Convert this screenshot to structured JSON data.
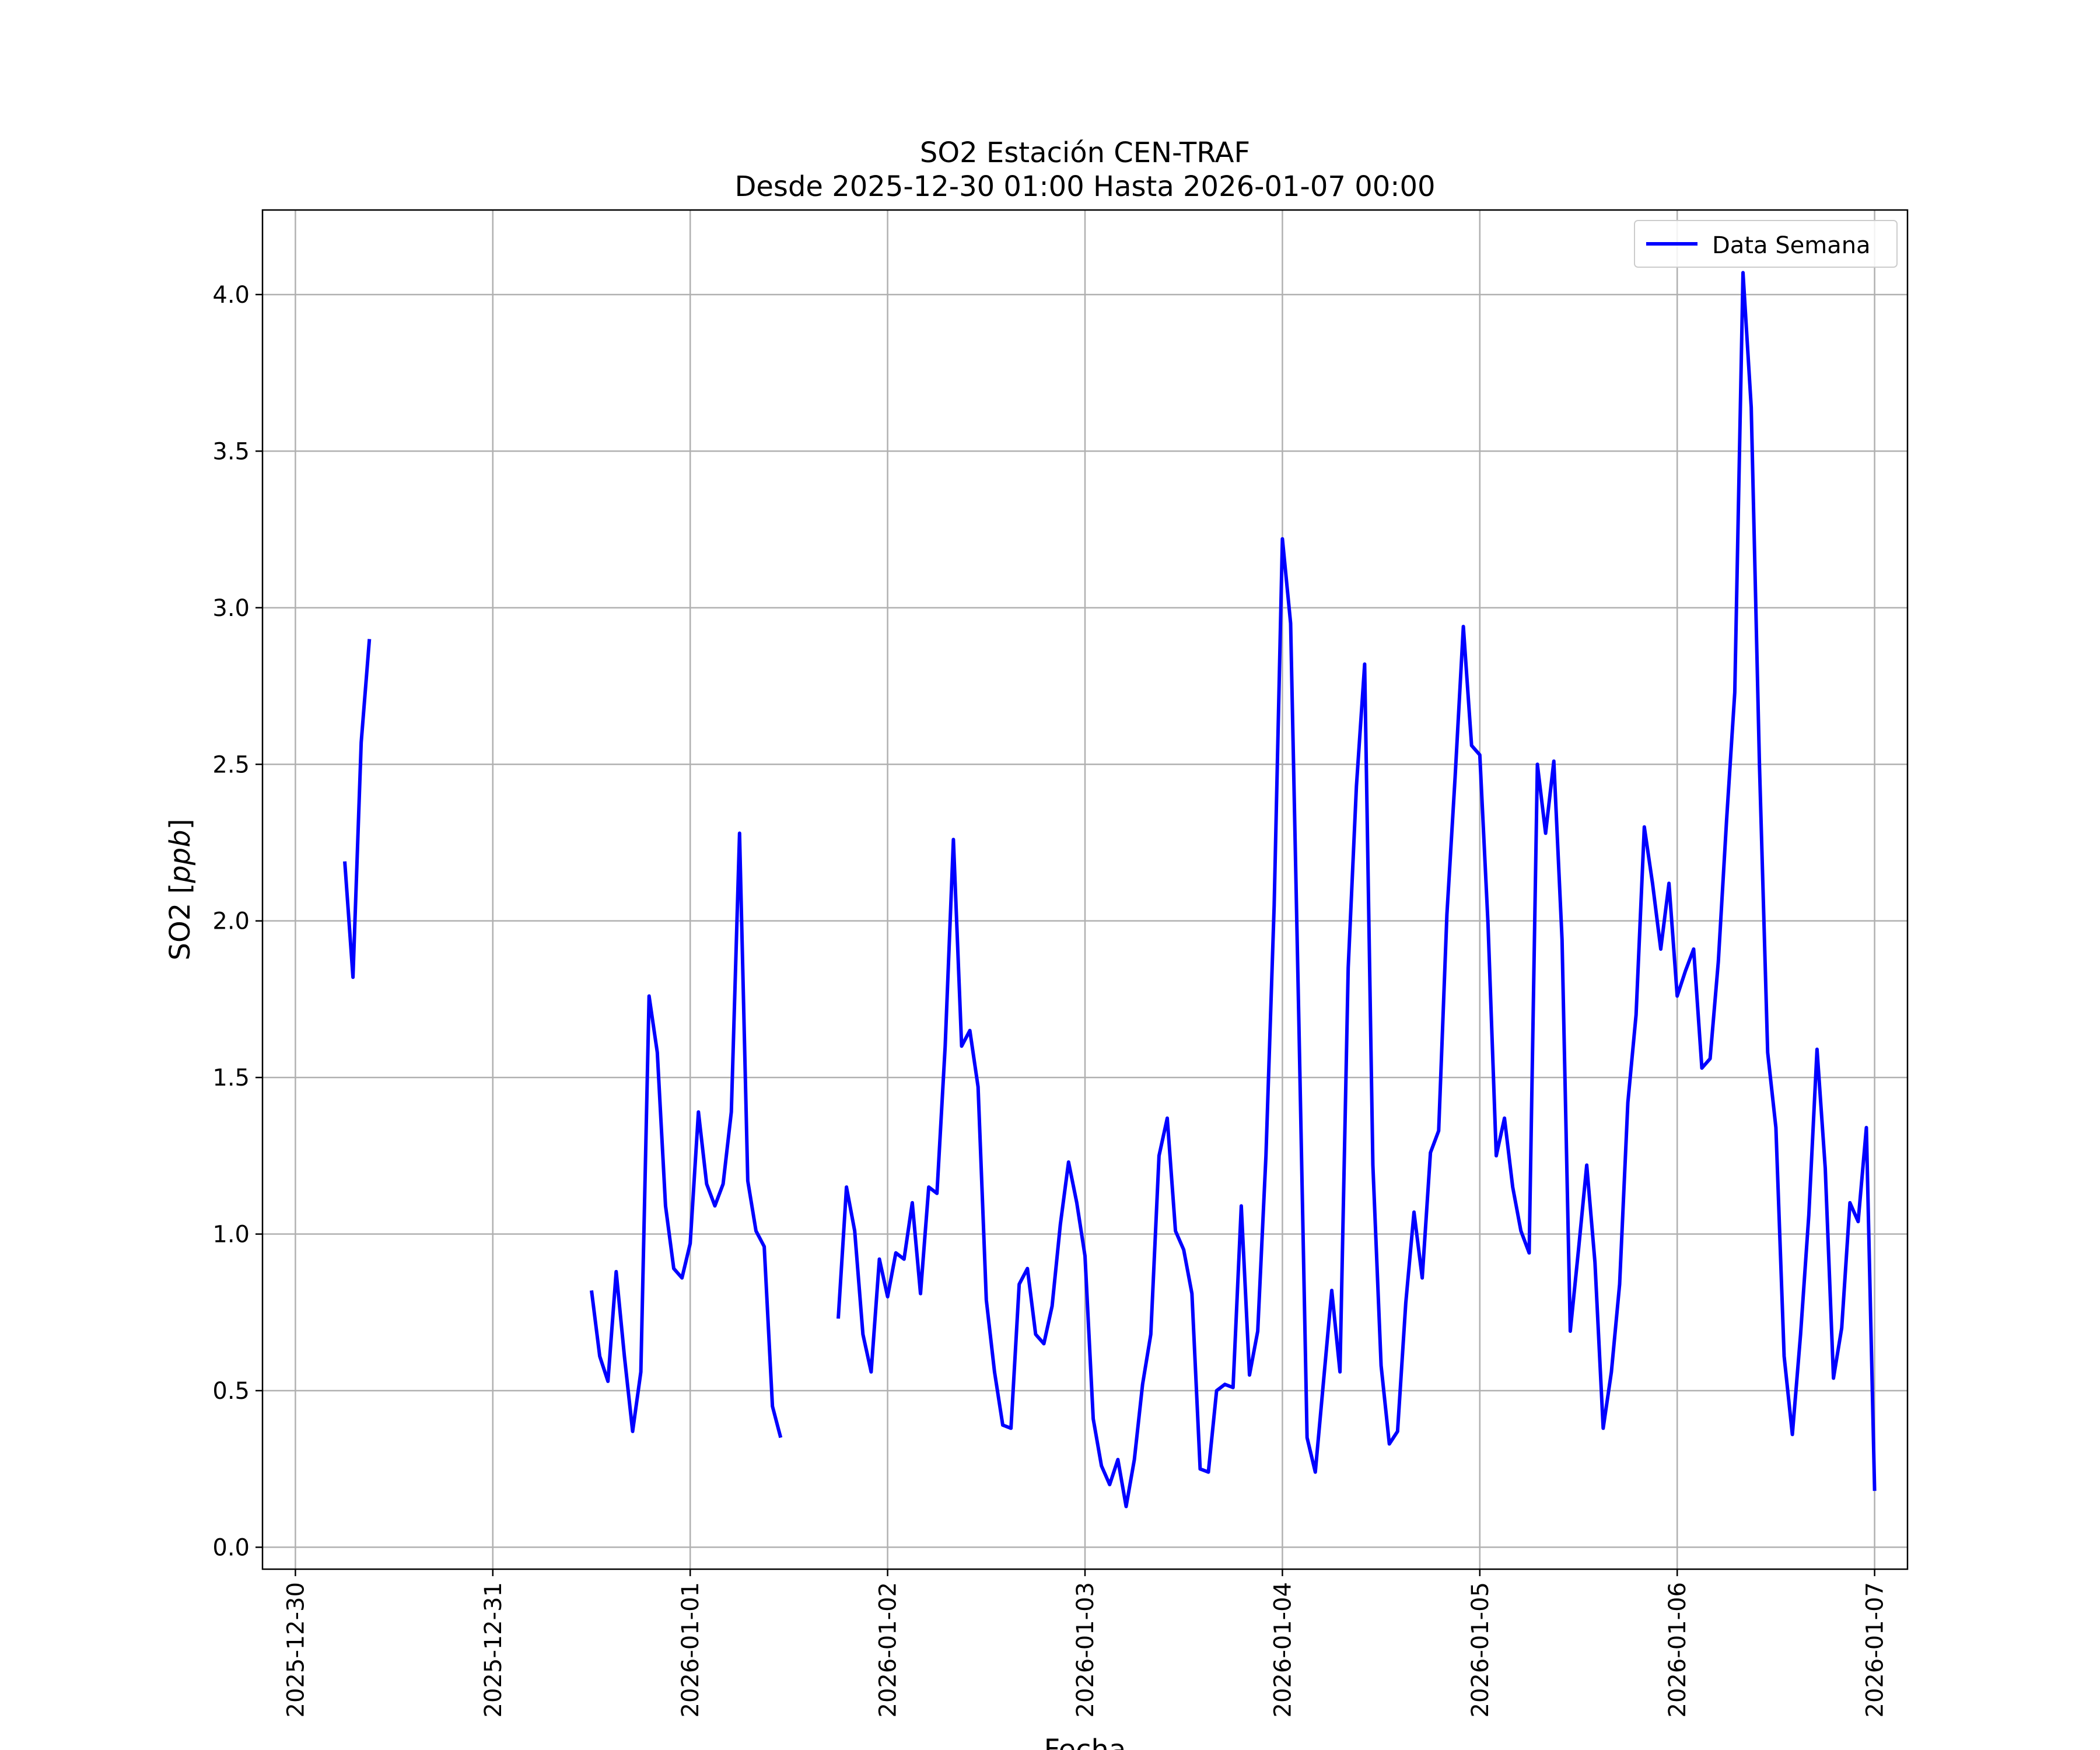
{
  "chart_data": {
    "type": "line",
    "title": "SO2 Estación CEN-TRAF",
    "subtitle": "Desde 2025-12-30 01:00 Hasta 2026-01-07 00:00",
    "xlabel": "Fecha",
    "ylabel": "SO2 [",
    "ylabel_italic": "ppb",
    "ylabel_suffix": "]",
    "xlim": [
      "2025-12-29 20:00",
      "2026-01-07 04:00"
    ],
    "ylim": [
      -0.07,
      4.27
    ],
    "grid": true,
    "legend": "top-right",
    "x_ticks": [
      "2025-12-30",
      "2025-12-31",
      "2026-01-01",
      "2026-01-02",
      "2026-01-03",
      "2026-01-04",
      "2026-01-05",
      "2026-01-06",
      "2026-01-07"
    ],
    "y_ticks": [
      "0.0",
      "0.5",
      "1.0",
      "1.5",
      "2.0",
      "2.5",
      "3.0",
      "3.5",
      "4.0"
    ],
    "color": "#0000ff",
    "series": [
      {
        "name": "Data Semana",
        "segments": [
          [
            [
              "2025-12-30 06:00",
              2.19
            ],
            [
              "2025-12-30 07:00",
              1.82
            ],
            [
              "2025-12-30 08:00",
              2.57
            ],
            [
              "2025-12-30 09:00",
              2.9
            ]
          ],
          [
            [
              "2025-12-31 12:00",
              0.82
            ],
            [
              "2025-12-31 13:00",
              0.61
            ],
            [
              "2025-12-31 14:00",
              0.53
            ],
            [
              "2025-12-31 15:00",
              0.88
            ],
            [
              "2025-12-31 16:00",
              0.61
            ],
            [
              "2025-12-31 17:00",
              0.37
            ],
            [
              "2025-12-31 18:00",
              0.56
            ],
            [
              "2025-12-31 19:00",
              1.76
            ],
            [
              "2025-12-31 20:00",
              1.58
            ],
            [
              "2025-12-31 21:00",
              1.09
            ],
            [
              "2025-12-31 22:00",
              0.89
            ],
            [
              "2025-12-31 23:00",
              0.86
            ],
            [
              "2026-01-01 00:00",
              0.97
            ],
            [
              "2026-01-01 01:00",
              1.39
            ],
            [
              "2026-01-01 02:00",
              1.16
            ],
            [
              "2026-01-01 03:00",
              1.09
            ],
            [
              "2026-01-01 04:00",
              1.16
            ],
            [
              "2026-01-01 05:00",
              1.39
            ],
            [
              "2026-01-01 06:00",
              2.28
            ],
            [
              "2026-01-01 07:00",
              1.17
            ],
            [
              "2026-01-01 08:00",
              1.01
            ],
            [
              "2026-01-01 09:00",
              0.96
            ],
            [
              "2026-01-01 10:00",
              0.45
            ],
            [
              "2026-01-01 11:00",
              0.35
            ]
          ],
          [
            [
              "2026-01-01 18:00",
              0.73
            ],
            [
              "2026-01-01 19:00",
              1.15
            ],
            [
              "2026-01-01 20:00",
              1.01
            ],
            [
              "2026-01-01 21:00",
              0.68
            ],
            [
              "2026-01-01 22:00",
              0.56
            ],
            [
              "2026-01-01 23:00",
              0.92
            ],
            [
              "2026-01-02 00:00",
              0.8
            ],
            [
              "2026-01-02 01:00",
              0.94
            ],
            [
              "2026-01-02 02:00",
              0.92
            ],
            [
              "2026-01-02 03:00",
              1.1
            ],
            [
              "2026-01-02 04:00",
              0.81
            ],
            [
              "2026-01-02 05:00",
              1.15
            ],
            [
              "2026-01-02 06:00",
              1.13
            ],
            [
              "2026-01-02 07:00",
              1.6
            ],
            [
              "2026-01-02 08:00",
              2.26
            ],
            [
              "2026-01-02 09:00",
              1.6
            ],
            [
              "2026-01-02 10:00",
              1.65
            ],
            [
              "2026-01-02 11:00",
              1.47
            ],
            [
              "2026-01-02 12:00",
              0.79
            ],
            [
              "2026-01-02 13:00",
              0.56
            ],
            [
              "2026-01-02 14:00",
              0.39
            ],
            [
              "2026-01-02 15:00",
              0.38
            ],
            [
              "2026-01-02 16:00",
              0.84
            ],
            [
              "2026-01-02 17:00",
              0.89
            ],
            [
              "2026-01-02 18:00",
              0.68
            ],
            [
              "2026-01-02 19:00",
              0.65
            ],
            [
              "2026-01-02 20:00",
              0.77
            ],
            [
              "2026-01-02 21:00",
              1.03
            ],
            [
              "2026-01-02 22:00",
              1.23
            ],
            [
              "2026-01-02 23:00",
              1.1
            ],
            [
              "2026-01-03 00:00",
              0.93
            ],
            [
              "2026-01-03 01:00",
              0.41
            ],
            [
              "2026-01-03 02:00",
              0.26
            ],
            [
              "2026-01-03 03:00",
              0.2
            ],
            [
              "2026-01-03 04:00",
              0.28
            ],
            [
              "2026-01-03 05:00",
              0.13
            ],
            [
              "2026-01-03 06:00",
              0.28
            ],
            [
              "2026-01-03 07:00",
              0.52
            ],
            [
              "2026-01-03 08:00",
              0.68
            ],
            [
              "2026-01-03 09:00",
              1.25
            ],
            [
              "2026-01-03 10:00",
              1.37
            ],
            [
              "2026-01-03 11:00",
              1.01
            ],
            [
              "2026-01-03 12:00",
              0.95
            ],
            [
              "2026-01-03 13:00",
              0.81
            ],
            [
              "2026-01-03 14:00",
              0.25
            ],
            [
              "2026-01-03 15:00",
              0.24
            ],
            [
              "2026-01-03 16:00",
              0.5
            ],
            [
              "2026-01-03 17:00",
              0.52
            ],
            [
              "2026-01-03 18:00",
              0.51
            ],
            [
              "2026-01-03 19:00",
              1.09
            ],
            [
              "2026-01-03 20:00",
              0.55
            ],
            [
              "2026-01-03 21:00",
              0.69
            ],
            [
              "2026-01-03 22:00",
              1.25
            ],
            [
              "2026-01-03 23:00",
              2.05
            ],
            [
              "2026-01-04 00:00",
              3.22
            ],
            [
              "2026-01-04 01:00",
              2.95
            ],
            [
              "2026-01-04 02:00",
              1.68
            ],
            [
              "2026-01-04 03:00",
              0.35
            ],
            [
              "2026-01-04 04:00",
              0.24
            ],
            [
              "2026-01-04 05:00",
              0.53
            ],
            [
              "2026-01-04 06:00",
              0.82
            ],
            [
              "2026-01-04 07:00",
              0.56
            ],
            [
              "2026-01-04 08:00",
              1.85
            ],
            [
              "2026-01-04 09:00",
              2.43
            ],
            [
              "2026-01-04 10:00",
              2.82
            ],
            [
              "2026-01-04 11:00",
              1.22
            ],
            [
              "2026-01-04 12:00",
              0.58
            ],
            [
              "2026-01-04 13:00",
              0.33
            ],
            [
              "2026-01-04 14:00",
              0.37
            ],
            [
              "2026-01-04 15:00",
              0.78
            ],
            [
              "2026-01-04 16:00",
              1.07
            ],
            [
              "2026-01-04 17:00",
              0.86
            ],
            [
              "2026-01-04 18:00",
              1.26
            ],
            [
              "2026-01-04 19:00",
              1.33
            ],
            [
              "2026-01-04 20:00",
              2.02
            ],
            [
              "2026-01-04 21:00",
              2.46
            ],
            [
              "2026-01-04 22:00",
              2.94
            ],
            [
              "2026-01-04 23:00",
              2.56
            ],
            [
              "2026-01-05 00:00",
              2.53
            ],
            [
              "2026-01-05 01:00",
              1.99
            ],
            [
              "2026-01-05 02:00",
              1.25
            ],
            [
              "2026-01-05 03:00",
              1.37
            ],
            [
              "2026-01-05 04:00",
              1.15
            ],
            [
              "2026-01-05 05:00",
              1.01
            ],
            [
              "2026-01-05 06:00",
              0.94
            ],
            [
              "2026-01-05 07:00",
              2.5
            ],
            [
              "2026-01-05 08:00",
              2.28
            ],
            [
              "2026-01-05 09:00",
              2.51
            ],
            [
              "2026-01-05 10:00",
              1.94
            ],
            [
              "2026-01-05 11:00",
              0.69
            ],
            [
              "2026-01-05 12:00",
              0.95
            ],
            [
              "2026-01-05 13:00",
              1.22
            ],
            [
              "2026-01-05 14:00",
              0.91
            ],
            [
              "2026-01-05 15:00",
              0.38
            ],
            [
              "2026-01-05 16:00",
              0.56
            ],
            [
              "2026-01-05 17:00",
              0.84
            ],
            [
              "2026-01-05 18:00",
              1.42
            ],
            [
              "2026-01-05 19:00",
              1.7
            ],
            [
              "2026-01-05 20:00",
              2.3
            ],
            [
              "2026-01-05 21:00",
              2.12
            ],
            [
              "2026-01-05 22:00",
              1.91
            ],
            [
              "2026-01-05 23:00",
              2.12
            ],
            [
              "2026-01-06 00:00",
              1.76
            ],
            [
              "2026-01-06 01:00",
              1.84
            ],
            [
              "2026-01-06 02:00",
              1.91
            ],
            [
              "2026-01-06 03:00",
              1.53
            ],
            [
              "2026-01-06 04:00",
              1.56
            ],
            [
              "2026-01-06 05:00",
              1.87
            ],
            [
              "2026-01-06 06:00",
              2.32
            ],
            [
              "2026-01-06 07:00",
              2.73
            ],
            [
              "2026-01-06 08:00",
              4.07
            ],
            [
              "2026-01-06 09:00",
              3.64
            ],
            [
              "2026-01-06 10:00",
              2.5
            ],
            [
              "2026-01-06 11:00",
              1.58
            ],
            [
              "2026-01-06 12:00",
              1.34
            ],
            [
              "2026-01-06 13:00",
              0.61
            ],
            [
              "2026-01-06 14:00",
              0.36
            ],
            [
              "2026-01-06 15:00",
              0.68
            ],
            [
              "2026-01-06 16:00",
              1.06
            ],
            [
              "2026-01-06 17:00",
              1.59
            ],
            [
              "2026-01-06 18:00",
              1.21
            ],
            [
              "2026-01-06 19:00",
              0.54
            ],
            [
              "2026-01-06 20:00",
              0.7
            ],
            [
              "2026-01-06 21:00",
              1.1
            ],
            [
              "2026-01-06 22:00",
              1.04
            ],
            [
              "2026-01-06 23:00",
              1.34
            ],
            [
              "2026-01-07 00:00",
              0.18
            ]
          ]
        ]
      }
    ]
  }
}
